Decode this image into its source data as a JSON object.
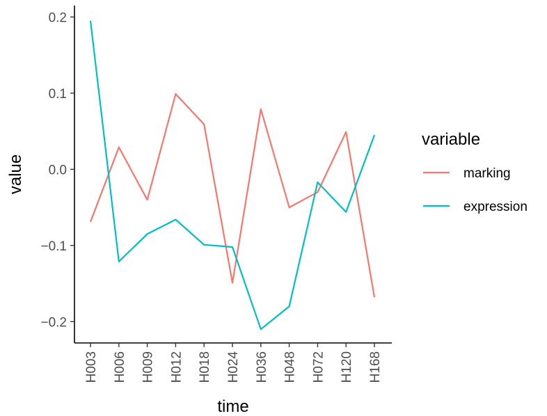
{
  "chart_data": {
    "type": "line",
    "title": "",
    "xlabel": "time",
    "ylabel": "value",
    "categories": [
      "H003",
      "H006",
      "H009",
      "H012",
      "H018",
      "H024",
      "H036",
      "H048",
      "H072",
      "H120",
      "H168"
    ],
    "y_ticks": [
      {
        "value": 0.2,
        "label": "0.2"
      },
      {
        "value": 0.1,
        "label": "0.1"
      },
      {
        "value": 0.0,
        "label": "0.0"
      },
      {
        "value": -0.1,
        "label": "−0.1"
      },
      {
        "value": -0.2,
        "label": "−0.2"
      }
    ],
    "ylim": [
      -0.228,
      0.215
    ],
    "grid": false,
    "legend": {
      "title": "variable",
      "placement": "right"
    },
    "series": [
      {
        "name": "marking",
        "color": "#F8766D",
        "values": [
          -0.069,
          0.029,
          -0.04,
          0.099,
          0.059,
          -0.149,
          0.079,
          -0.05,
          -0.03,
          0.049,
          -0.168
        ]
      },
      {
        "name": "expression",
        "color": "#00BFC4",
        "values": [
          0.195,
          -0.121,
          -0.085,
          -0.066,
          -0.099,
          -0.102,
          -0.21,
          -0.18,
          -0.017,
          -0.056,
          0.045
        ]
      }
    ]
  }
}
